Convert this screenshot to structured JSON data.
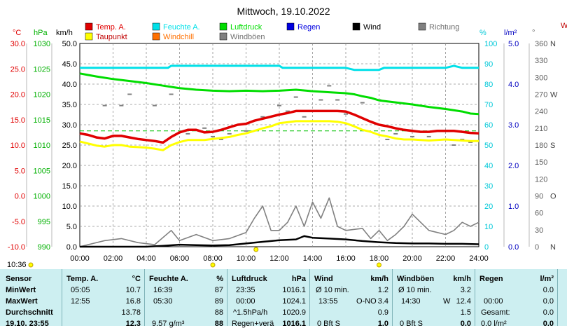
{
  "chart_data": {
    "type": "line",
    "title": "Mittwoch, 19.10.2022",
    "legend": {
      "placement": "top",
      "items": [
        {
          "label": "Temp. A.",
          "color": "#e00000"
        },
        {
          "label": "Feuchte A.",
          "color": "#00e0e8"
        },
        {
          "label": "Luftdruck",
          "color": "#00dd00"
        },
        {
          "label": "Regen",
          "color": "#0000e0"
        },
        {
          "label": "Wind",
          "color": "#000000"
        },
        {
          "label": "Richtung",
          "color": "#808080"
        },
        {
          "label": "Taupunkt",
          "color": "#ffff00"
        },
        {
          "label": "Windchill",
          "color": "#ff7000"
        },
        {
          "label": "Windböen",
          "color": "#808080"
        }
      ]
    },
    "axes": {
      "temp": {
        "unit": "°C",
        "min": -10,
        "max": 30,
        "ticks": [
          "30.0",
          "25.0",
          "20.0",
          "15.0",
          "10.0",
          "5.0",
          "0.0",
          "-5.0",
          "-10.0"
        ],
        "color": "#e00000"
      },
      "pressure": {
        "unit": "hPa",
        "min": 990,
        "max": 1030,
        "ticks": [
          "1030",
          "1025",
          "1020",
          "1015",
          "1010",
          "1005",
          "1000",
          "995",
          "990"
        ],
        "color": "#00b000"
      },
      "wind": {
        "unit": "km/h",
        "min": 0,
        "max": 50,
        "ticks": [
          "50.0",
          "45.0",
          "40.0",
          "35.0",
          "30.0",
          "25.0",
          "20.0",
          "15.0",
          "10.0",
          "5.0",
          "0.0"
        ],
        "color": "#000000"
      },
      "humidity": {
        "unit": "%",
        "min": 0,
        "max": 100,
        "ticks": [
          "100",
          "90",
          "80",
          "70",
          "60",
          "50",
          "40",
          "30",
          "20",
          "10",
          "0"
        ],
        "color": "#00c8d8"
      },
      "rain": {
        "unit": "l/m²",
        "min": 0,
        "max": 5,
        "ticks": [
          "5.0",
          "4.0",
          "3.0",
          "2.0",
          "1.0",
          "0.0"
        ],
        "color": "#0000c0"
      },
      "direction": {
        "unit": "°",
        "min": 0,
        "max": 360,
        "ticks": [
          "360",
          "330",
          "300",
          "270",
          "240",
          "210",
          "180",
          "150",
          "120",
          "90",
          "60",
          "30",
          "0"
        ],
        "compass": [
          "N",
          "O",
          "S",
          "W",
          "N"
        ],
        "color": "#606060"
      },
      "x": {
        "ticks": [
          "00:00",
          "02:00",
          "04:00",
          "06:00",
          "08:00",
          "10:00",
          "12:00",
          "14:00",
          "16:00",
          "18:00",
          "20:00",
          "22:00",
          "24:00"
        ]
      }
    },
    "right_edge_label": "W",
    "series": [
      {
        "name": "Temp. A.",
        "axis": "temp",
        "color": "#e00000",
        "x": [
          0,
          0.5,
          1,
          1.5,
          2,
          2.5,
          3,
          3.5,
          4,
          4.5,
          5,
          5.5,
          6,
          6.5,
          7,
          7.5,
          8,
          8.5,
          9,
          9.5,
          10,
          10.5,
          11,
          11.5,
          12,
          12.5,
          13,
          13.5,
          14,
          14.5,
          15,
          15.5,
          16,
          16.5,
          17,
          17.5,
          18,
          18.5,
          19,
          19.5,
          20,
          20.5,
          21,
          21.5,
          22,
          22.5,
          23,
          23.5,
          24
        ],
        "y": [
          12.3,
          12.0,
          11.5,
          11.3,
          11.8,
          11.8,
          11.5,
          11.2,
          11.0,
          10.8,
          10.5,
          11.6,
          12.5,
          13.0,
          13.0,
          12.5,
          12.6,
          13.0,
          13.5,
          14.0,
          14.2,
          14.8,
          15.2,
          15.6,
          16.0,
          16.3,
          16.7,
          16.7,
          16.7,
          16.7,
          16.7,
          16.7,
          16.6,
          16.0,
          15.3,
          14.6,
          14.0,
          13.7,
          13.3,
          13.0,
          12.8,
          12.6,
          12.6,
          12.8,
          12.8,
          12.8,
          12.6,
          12.4,
          12.3
        ]
      },
      {
        "name": "Taupunkt",
        "axis": "temp",
        "color": "#ffff00",
        "x": [
          0,
          0.5,
          1,
          1.5,
          2,
          2.5,
          3,
          3.5,
          4,
          4.5,
          5,
          5.5,
          6,
          6.5,
          7,
          7.5,
          8,
          8.5,
          9,
          9.5,
          10,
          10.5,
          11,
          11.5,
          12,
          12.5,
          13,
          13.5,
          14,
          14.5,
          15,
          15.5,
          16,
          16.5,
          17,
          17.5,
          18,
          18.5,
          19,
          19.5,
          20,
          20.5,
          21,
          21.5,
          22,
          22.5,
          23,
          23.5,
          24
        ],
        "y": [
          10.7,
          10.3,
          9.9,
          9.7,
          10.0,
          10.0,
          9.7,
          9.6,
          9.5,
          9.3,
          9.0,
          10.0,
          10.6,
          11.0,
          11.0,
          11.0,
          11.2,
          11.4,
          11.6,
          12.0,
          12.3,
          12.8,
          13.3,
          13.7,
          14.3,
          14.5,
          14.7,
          14.7,
          14.7,
          14.7,
          14.7,
          14.6,
          14.3,
          13.7,
          13.0,
          12.6,
          12.0,
          11.7,
          11.3,
          11.1,
          11.1,
          11.0,
          10.9,
          11.0,
          11.1,
          11.0,
          10.9,
          10.8,
          10.8
        ]
      },
      {
        "name": "Feuchte A.",
        "axis": "humidity",
        "color": "#00e0e8",
        "x": [
          0,
          2,
          4,
          5.3,
          5.5,
          8,
          10,
          12,
          12.2,
          14,
          16,
          16.5,
          18,
          18.3,
          20,
          22,
          22.5,
          23,
          24
        ],
        "y": [
          88,
          88,
          88,
          88,
          89,
          89,
          89,
          89,
          88,
          88,
          88,
          87,
          87,
          88,
          88,
          88,
          89,
          88,
          88
        ]
      },
      {
        "name": "Luftdruck",
        "axis": "pressure",
        "color": "#00dd00",
        "x": [
          0,
          0.5,
          1,
          2,
          3,
          4,
          5,
          6,
          7,
          8,
          9,
          10,
          11,
          12,
          13,
          14,
          15,
          16,
          16.5,
          17,
          17.5,
          18,
          19,
          20,
          21,
          22,
          23,
          23.5,
          24
        ],
        "y": [
          1024.1,
          1023.8,
          1023.5,
          1023.0,
          1022.6,
          1022.2,
          1021.7,
          1021.2,
          1020.9,
          1020.7,
          1020.6,
          1020.7,
          1020.6,
          1020.7,
          1020.9,
          1020.6,
          1020.4,
          1020.2,
          1020.0,
          1019.6,
          1019.3,
          1018.8,
          1018.4,
          1018.0,
          1017.5,
          1017.1,
          1016.6,
          1016.2,
          1016.1
        ]
      },
      {
        "name": "Wind",
        "axis": "wind",
        "color": "#000000",
        "x": [
          0,
          2,
          4,
          5,
          6,
          7,
          8,
          9,
          10,
          11,
          12,
          13,
          13.5,
          14,
          15,
          16,
          17,
          18,
          19,
          20,
          21,
          22,
          23,
          24
        ],
        "y": [
          0,
          0,
          0,
          0.2,
          0.5,
          0.4,
          0.3,
          0.4,
          0.8,
          1.2,
          1.6,
          1.8,
          2.6,
          2.2,
          2.0,
          1.8,
          1.4,
          1.1,
          0.9,
          0.8,
          0.8,
          0.7,
          0.7,
          0.6
        ]
      },
      {
        "name": "Windböen",
        "axis": "wind",
        "color": "#808080",
        "x": [
          0,
          1.5,
          2.5,
          3.5,
          4.5,
          5.5,
          6,
          7,
          8,
          9,
          10,
          10.5,
          11,
          11.5,
          12,
          12.5,
          13,
          13.5,
          14,
          14.5,
          15,
          15.5,
          16,
          17,
          17.5,
          18,
          18.5,
          19,
          19.5,
          20,
          20.5,
          21,
          22,
          22.5,
          23,
          23.5,
          24
        ],
        "y": [
          0,
          1.5,
          2.0,
          1.0,
          0.5,
          4.0,
          1.5,
          3.0,
          1.5,
          2.0,
          3.5,
          7.0,
          10.0,
          4.0,
          4.0,
          6.0,
          10.0,
          5.0,
          11.0,
          7.0,
          12.0,
          5.0,
          4.0,
          4.5,
          2.0,
          4.0,
          1.5,
          3.0,
          5.0,
          8.0,
          6.0,
          4.0,
          3.0,
          4.0,
          6.0,
          5.0,
          6.0
        ]
      },
      {
        "name": "Richtung",
        "axis": "direction",
        "color": "#808080",
        "x": [
          1.5,
          2.5,
          3,
          4.5,
          5.5,
          6.5,
          7.5,
          8,
          8.5,
          9,
          10,
          11,
          12,
          12.5,
          13,
          13.5,
          14,
          14.5,
          15,
          15.5,
          16,
          17,
          18,
          18.5,
          19,
          20,
          21,
          22,
          22.5,
          23,
          23.5
        ],
        "y": [
          250,
          250,
          270,
          250,
          270,
          200,
          210,
          195,
          190,
          200,
          205,
          230,
          250,
          240,
          265,
          230,
          275,
          260,
          285,
          260,
          235,
          255,
          260,
          190,
          200,
          195,
          195,
          190,
          180,
          190,
          185
        ]
      }
    ],
    "reference_line": {
      "axis": "temp",
      "value": 12.8,
      "color": "#00c000",
      "style": "dashed"
    },
    "marker": {
      "label": "10:36",
      "x": 10.6
    }
  },
  "table": {
    "row_labels": {
      "sensor": "Sensor",
      "min": "MinWert",
      "max": "MaxWert",
      "avg": "Durchschnitt",
      "current": "19.10. 23:55"
    },
    "temp": {
      "header": "Temp. A.",
      "unit": "°C",
      "min_time": "05:05",
      "min": "10.7",
      "max_time": "12:55",
      "max": "16.8",
      "avg": "13.78",
      "current": "12.3"
    },
    "humidity": {
      "header": "Feuchte A.",
      "unit": "%",
      "min_time": "16:39",
      "min": "87",
      "max_time": "05:30",
      "max": "89",
      "avg": "88",
      "current_extra": "9.57 g/m³",
      "current": "88"
    },
    "pressure": {
      "header": "Luftdruck",
      "unit": "hPa",
      "min_time": "23:35",
      "min": "1016.1",
      "max_time": "00:00",
      "max": "1024.1",
      "avg_label": "^1.5hPa/h",
      "avg": "1020.9",
      "current_label": "Regen+verä",
      "current": "1016.1"
    },
    "wind": {
      "header": "Wind",
      "unit": "km/h",
      "min_label": "Ø 10 min.",
      "min": "1.2",
      "max_time": "13:55",
      "max_dir": "O-NO",
      "max": "3.4",
      "avg": "0.9",
      "current_label": "0 Bft S",
      "current": "1.0"
    },
    "gust": {
      "header": "Windböen",
      "unit": "km/h",
      "min_label": "Ø 10 min.",
      "min": "3.2",
      "max_time": "14:30",
      "max_dir": "W",
      "max": "12.4",
      "avg": "1.5",
      "current_label": "0 Bft S",
      "current": "0.0"
    },
    "rain": {
      "header": "Regen",
      "unit": "l/m²",
      "min": "0.0",
      "max_time": "00:00",
      "max": "0.0",
      "avg_label": "Gesamt:",
      "avg": "0.0",
      "current_label": "0.0 l/m²",
      "current": "0.0"
    }
  }
}
